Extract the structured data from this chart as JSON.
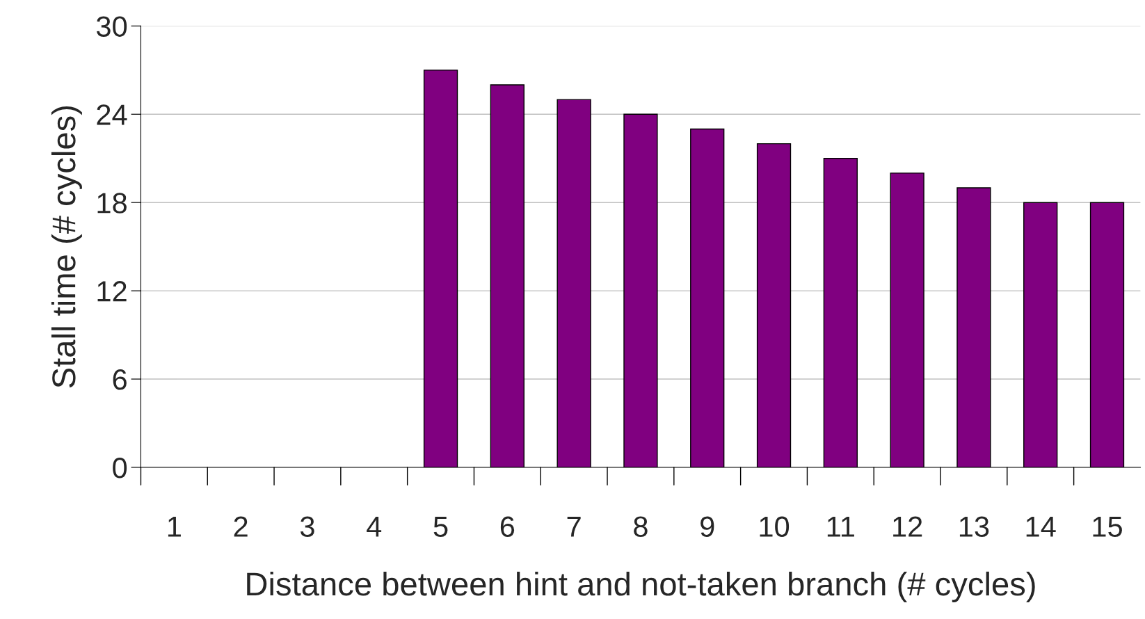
{
  "chart_data": {
    "type": "bar",
    "xlabel": "Distance between hint and not-taken branch (# cycles)",
    "ylabel": "Stall time (# cycles)",
    "categories": [
      "1",
      "2",
      "3",
      "4",
      "5",
      "6",
      "7",
      "8",
      "9",
      "10",
      "11",
      "12",
      "13",
      "14",
      "15"
    ],
    "values": [
      0,
      0,
      0,
      0,
      27,
      26,
      25,
      24,
      23,
      22,
      21,
      20,
      19,
      18,
      18
    ],
    "color": "#800080",
    "ylim": [
      0,
      30
    ],
    "yticks": [
      0,
      6,
      12,
      18,
      24,
      30
    ],
    "grid": "y"
  }
}
